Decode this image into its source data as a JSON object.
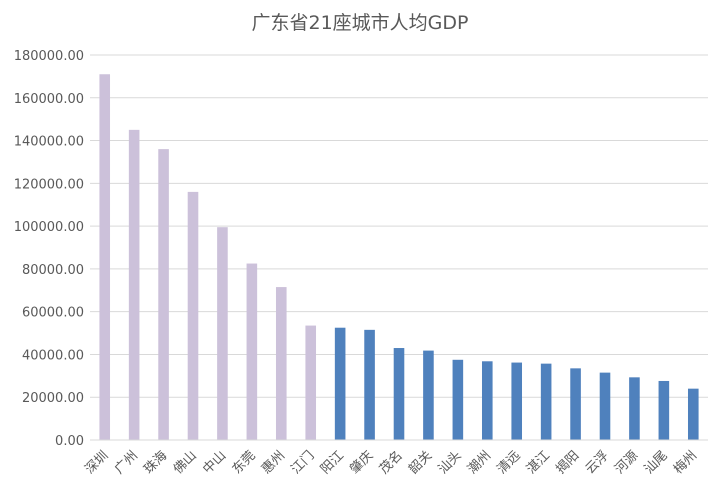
{
  "chart_data": {
    "type": "bar",
    "title": "广东省21座城市人均GDP",
    "xlabel": "",
    "ylabel": "",
    "ylim": [
      0,
      180000
    ],
    "ytick_step": 20000,
    "ytick_format_decimals": 2,
    "grid": true,
    "legend": "none",
    "categories": [
      "深圳",
      "广州",
      "珠海",
      "佛山",
      "中山",
      "东莞",
      "惠州",
      "江门",
      "阳江",
      "肇庆",
      "茂名",
      "韶关",
      "汕头",
      "潮州",
      "清远",
      "湛江",
      "揭阳",
      "云浮",
      "河源",
      "汕尾",
      "梅州"
    ],
    "values": [
      171000,
      145000,
      136000,
      116000,
      99500,
      82500,
      71500,
      53500,
      52500,
      51500,
      43000,
      41800,
      37500,
      36800,
      36200,
      35700,
      33500,
      31500,
      29300,
      27600,
      24000
    ],
    "colors": [
      "#ccc1da",
      "#ccc1da",
      "#ccc1da",
      "#ccc1da",
      "#ccc1da",
      "#ccc1da",
      "#ccc1da",
      "#ccc1da",
      "#4f81bd",
      "#4f81bd",
      "#4f81bd",
      "#4f81bd",
      "#4f81bd",
      "#4f81bd",
      "#4f81bd",
      "#4f81bd",
      "#4f81bd",
      "#4f81bd",
      "#4f81bd",
      "#4f81bd",
      "#4f81bd"
    ]
  }
}
